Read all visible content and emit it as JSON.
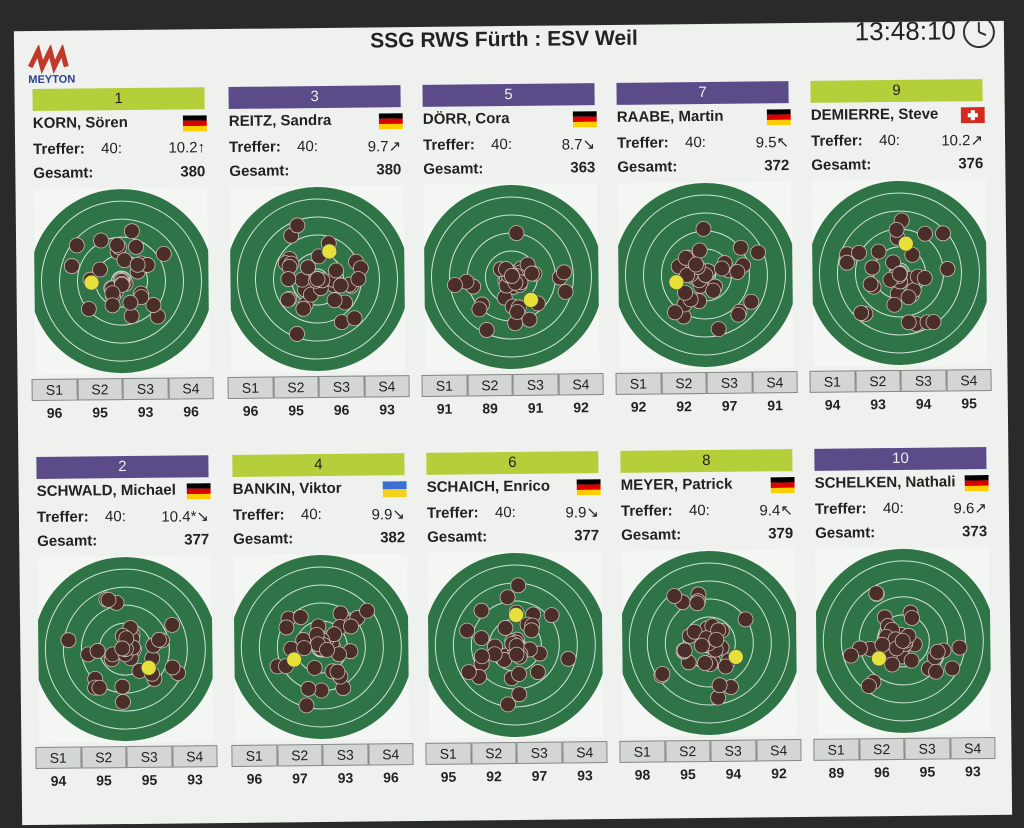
{
  "header": {
    "title": "SSG RWS Fürth : ESV Weil",
    "clock": "13:48:10",
    "logo": "MEYTON"
  },
  "labels": {
    "treffer": "Treffer:",
    "gesamt": "Gesamt:",
    "series": [
      "S1",
      "S2",
      "S3",
      "S4"
    ]
  },
  "colors": {
    "leader_bar": "#b3cf3a",
    "trailer_bar": "#5c4b89",
    "target_bg": "#2e7446",
    "shot": "#4b2e29"
  },
  "icons": {
    "logo": "meyton-logo",
    "clock": "clock-icon"
  },
  "shooters": [
    {
      "pos": "1",
      "bar": "green",
      "name": "KORN, Sören",
      "flag": "germany",
      "treffer": "40:",
      "last": "10.2",
      "arrow": "↑",
      "gesamt": "380",
      "series": [
        "96",
        "95",
        "93",
        "96"
      ]
    },
    {
      "pos": "3",
      "bar": "purple",
      "name": "REITZ, Sandra",
      "flag": "germany",
      "treffer": "40:",
      "last": "9.7",
      "arrow": "↗",
      "gesamt": "380",
      "series": [
        "96",
        "95",
        "96",
        "93"
      ]
    },
    {
      "pos": "5",
      "bar": "purple",
      "name": "DÖRR, Cora",
      "flag": "germany",
      "treffer": "40:",
      "last": "8.7",
      "arrow": "↘",
      "gesamt": "363",
      "series": [
        "91",
        "89",
        "91",
        "92"
      ]
    },
    {
      "pos": "7",
      "bar": "purple",
      "name": "RAABE, Martin",
      "flag": "germany",
      "treffer": "40:",
      "last": "9.5",
      "arrow": "↖",
      "gesamt": "372",
      "series": [
        "92",
        "92",
        "97",
        "91"
      ]
    },
    {
      "pos": "9",
      "bar": "green",
      "name": "DEMIERRE, Steve",
      "flag": "switzerland",
      "treffer": "40:",
      "last": "10.2",
      "arrow": "↗",
      "gesamt": "376",
      "series": [
        "94",
        "93",
        "94",
        "95"
      ]
    },
    {
      "pos": "2",
      "bar": "purple",
      "name": "SCHWALD, Michael",
      "flag": "germany",
      "treffer": "40:",
      "last": "10.4*",
      "arrow": "↘",
      "gesamt": "377",
      "series": [
        "94",
        "95",
        "95",
        "93"
      ]
    },
    {
      "pos": "4",
      "bar": "green",
      "name": "BANKIN, Viktor",
      "flag": "ukraine",
      "treffer": "40:",
      "last": "9.9",
      "arrow": "↘",
      "gesamt": "382",
      "series": [
        "96",
        "97",
        "93",
        "96"
      ]
    },
    {
      "pos": "6",
      "bar": "green",
      "name": "SCHAICH, Enrico",
      "flag": "germany",
      "treffer": "40:",
      "last": "9.9",
      "arrow": "↘",
      "gesamt": "377",
      "series": [
        "95",
        "92",
        "97",
        "93"
      ]
    },
    {
      "pos": "8",
      "bar": "green",
      "name": "MEYER, Patrick",
      "flag": "germany",
      "treffer": "40:",
      "last": "9.4",
      "arrow": "↖",
      "gesamt": "379",
      "series": [
        "98",
        "95",
        "94",
        "92"
      ]
    },
    {
      "pos": "10",
      "bar": "purple",
      "name": "SCHELKEN, Nathali",
      "flag": "germany",
      "treffer": "40:",
      "last": "9.6",
      "arrow": "↗",
      "gesamt": "373",
      "series": [
        "89",
        "96",
        "95",
        "93"
      ]
    }
  ]
}
